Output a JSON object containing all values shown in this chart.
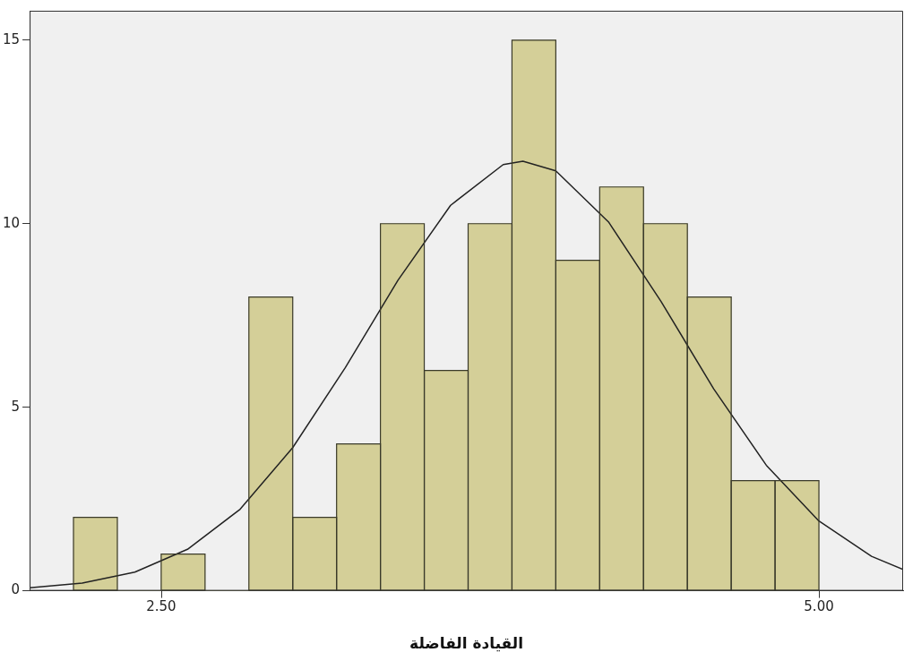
{
  "chart_data": {
    "type": "histogram",
    "xlabel": "القيادة الفاضلة",
    "bins": [
      2.1667,
      2.3333,
      2.5,
      2.6667,
      2.8333,
      3.0,
      3.1667,
      3.3333,
      3.5,
      3.6667,
      3.8333,
      4.0,
      4.1667,
      4.3333,
      4.5,
      4.6667,
      4.8333,
      5.0
    ],
    "values": [
      2,
      0,
      1,
      0,
      8,
      2,
      4,
      10,
      6,
      10,
      15,
      9,
      11,
      10,
      8,
      3,
      3
    ],
    "color": "#d4cf98",
    "series": [
      {
        "type": "line",
        "color": "#222222",
        "x": [
          2.0,
          2.2,
          2.4,
          2.6,
          2.8,
          3.0,
          3.2,
          3.4,
          3.6,
          3.8,
          3.875,
          4.0,
          4.2,
          4.4,
          4.6,
          4.8,
          5.0,
          5.2,
          5.32
        ],
        "values": [
          0.08,
          0.21,
          0.51,
          1.13,
          2.22,
          3.9,
          6.08,
          8.46,
          10.5,
          11.61,
          11.7,
          11.44,
          10.05,
          7.88,
          5.5,
          3.42,
          1.9,
          0.94,
          0.58
        ]
      }
    ],
    "marker": "none",
    "line_style": "solid",
    "xlim": [
      2.0,
      5.32
    ],
    "xticks": [
      {
        "value": 2.5,
        "label": "2.50"
      },
      {
        "value": 5.0,
        "label": "5.00"
      }
    ],
    "ylim": [
      0,
      15.8
    ],
    "yticks": [
      0,
      5,
      10,
      15
    ],
    "grid": false,
    "legend": false
  }
}
